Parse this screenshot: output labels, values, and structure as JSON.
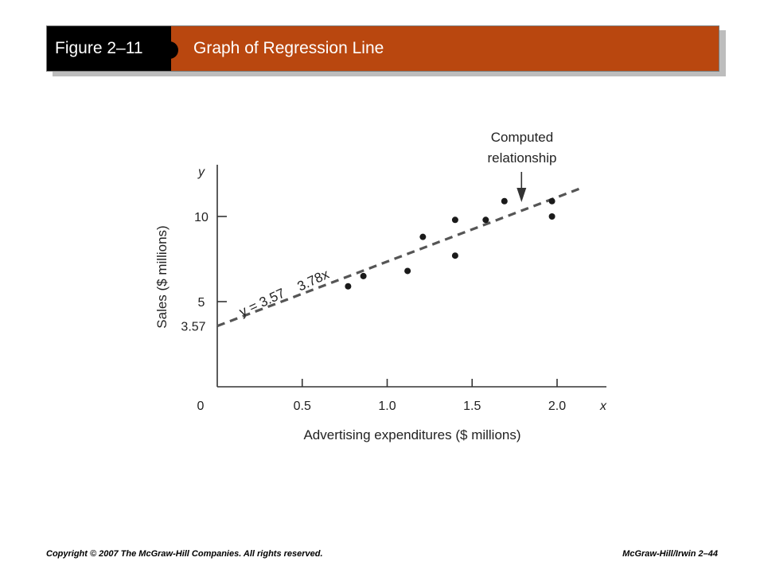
{
  "header": {
    "figure_label": "Figure 2–11",
    "title": "Graph of Regression Line"
  },
  "footer": {
    "copyright": "Copyright © 2007 The McGraw-Hill Companies. All rights reserved.",
    "page_ref": "McGraw-Hill/Irwin  2–44"
  },
  "chart_data": {
    "type": "scatter",
    "xlabel": "Advertising expenditures ($ millions)",
    "ylabel": "Sales ($ millions)",
    "x_axis_symbol": "x",
    "y_axis_symbol": "y",
    "origin_label": "0",
    "xlim": [
      0,
      2.3
    ],
    "ylim": [
      0,
      13.5
    ],
    "x_ticks": [
      0.5,
      1.0,
      1.5,
      2.0
    ],
    "x_tick_labels": [
      "0.5",
      "1.0",
      "1.5",
      "2.0"
    ],
    "y_ticks": [
      5,
      10
    ],
    "y_tick_labels": [
      "5",
      "10"
    ],
    "intercept_label": "3.57",
    "series": [
      {
        "points": [
          {
            "x": 0.77,
            "y": 5.9
          },
          {
            "x": 0.86,
            "y": 6.5
          },
          {
            "x": 1.12,
            "y": 6.8
          },
          {
            "x": 1.21,
            "y": 8.8
          },
          {
            "x": 1.4,
            "y": 9.8
          },
          {
            "x": 1.4,
            "y": 7.7
          },
          {
            "x": 1.58,
            "y": 9.8
          },
          {
            "x": 1.69,
            "y": 10.9
          },
          {
            "x": 1.97,
            "y": 10.9
          },
          {
            "x": 1.97,
            "y": 10.0
          }
        ]
      }
    ],
    "regression_line": {
      "intercept": 3.57,
      "slope": 3.78,
      "x_range": [
        0,
        2.13
      ],
      "style": "dashed",
      "equation_part1": "y = 3.57",
      "equation_part2": "3.78x"
    },
    "annotation": {
      "line1": "Computed",
      "line2": "relationship",
      "arrow_x": 1.8
    },
    "grid": false
  }
}
